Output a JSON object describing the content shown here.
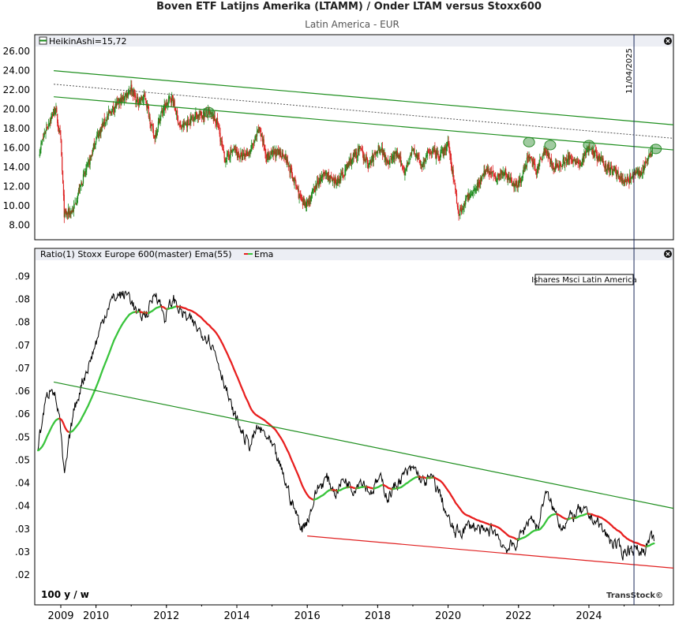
{
  "header": {
    "title": "Boven ETF Latijns Amerika (LTAMM) / Onder LTAM versus Stoxx600",
    "subtitle": "Latin America - EUR"
  },
  "colors": {
    "up": "#1a8a1a",
    "down": "#dd2222",
    "trend_green": "#1f8f1f",
    "trend_red": "#e02020",
    "ema_red": "#e82020",
    "ema_green": "#39c43c",
    "ratio": "#000000",
    "marker": "#2d8b2d",
    "vline": "#1b2a5a"
  },
  "x_ticks": [
    "2009",
    "2010",
    "2012",
    "2014",
    "2016",
    "2018",
    "2020",
    "2022",
    "2024"
  ],
  "vline_label": "11/04/2025",
  "watermark": "TransStock©",
  "period_label": "100 y / w",
  "chart_data": [
    {
      "type": "candlestick",
      "legend": "HeikinAshi=15,72",
      "ylim": [
        6.5,
        26.5
      ],
      "y_ticks": [
        "26.00",
        "24.00",
        "22.00",
        "20.00",
        "18.00",
        "16.00",
        "14.00",
        "12.00",
        "10.00",
        "8.00"
      ],
      "y_tick_values": [
        26,
        24,
        22,
        20,
        18,
        16,
        14,
        12,
        10,
        8
      ],
      "last_value": 15.72,
      "price_path": [
        [
          2008.4,
          15.8
        ],
        [
          2008.6,
          18.2
        ],
        [
          2008.85,
          20.1
        ],
        [
          2009.0,
          16.5
        ],
        [
          2009.1,
          9.0
        ],
        [
          2009.35,
          9.6
        ],
        [
          2009.6,
          12.5
        ],
        [
          2009.85,
          15.0
        ],
        [
          2010.0,
          17.0
        ],
        [
          2010.25,
          18.8
        ],
        [
          2010.5,
          20.2
        ],
        [
          2010.75,
          21.0
        ],
        [
          2011.0,
          22.3
        ],
        [
          2011.15,
          20.8
        ],
        [
          2011.4,
          21.2
        ],
        [
          2011.65,
          17.0
        ],
        [
          2011.85,
          19.6
        ],
        [
          2012.15,
          21.3
        ],
        [
          2012.4,
          18.0
        ],
        [
          2012.6,
          18.6
        ],
        [
          2012.8,
          19.4
        ],
        [
          2013.0,
          19.4
        ],
        [
          2013.2,
          19.6
        ],
        [
          2013.45,
          18.6
        ],
        [
          2013.65,
          14.8
        ],
        [
          2013.9,
          15.8
        ],
        [
          2014.15,
          15.0
        ],
        [
          2014.4,
          15.8
        ],
        [
          2014.65,
          18.0
        ],
        [
          2014.85,
          15.0
        ],
        [
          2015.1,
          15.5
        ],
        [
          2015.35,
          15.3
        ],
        [
          2015.65,
          12.4
        ],
        [
          2015.85,
          10.2
        ],
        [
          2016.05,
          10.5
        ],
        [
          2016.3,
          12.4
        ],
        [
          2016.55,
          13.4
        ],
        [
          2016.75,
          12.2
        ],
        [
          2017.0,
          13.2
        ],
        [
          2017.25,
          14.8
        ],
        [
          2017.5,
          15.8
        ],
        [
          2017.75,
          14.2
        ],
        [
          2018.05,
          16.2
        ],
        [
          2018.3,
          14.6
        ],
        [
          2018.55,
          15.4
        ],
        [
          2018.75,
          13.6
        ],
        [
          2019.0,
          15.8
        ],
        [
          2019.25,
          14.2
        ],
        [
          2019.5,
          15.8
        ],
        [
          2019.75,
          15.0
        ],
        [
          2020.0,
          16.4
        ],
        [
          2020.15,
          13.0
        ],
        [
          2020.3,
          9.2
        ],
        [
          2020.55,
          10.8
        ],
        [
          2020.8,
          12.0
        ],
        [
          2021.1,
          13.8
        ],
        [
          2021.35,
          13.0
        ],
        [
          2021.6,
          13.6
        ],
        [
          2021.85,
          12.2
        ],
        [
          2022.05,
          12.5
        ],
        [
          2022.3,
          15.4
        ],
        [
          2022.5,
          13.4
        ],
        [
          2022.75,
          16.0
        ],
        [
          2023.0,
          13.8
        ],
        [
          2023.25,
          14.6
        ],
        [
          2023.5,
          15.0
        ],
        [
          2023.75,
          14.2
        ],
        [
          2024.0,
          16.2
        ],
        [
          2024.25,
          15.0
        ],
        [
          2024.5,
          14.0
        ],
        [
          2024.75,
          13.6
        ],
        [
          2025.0,
          12.4
        ],
        [
          2025.25,
          13.0
        ],
        [
          2025.5,
          13.6
        ],
        [
          2025.8,
          15.7
        ]
      ],
      "trend_upper": [
        [
          2008.8,
          24.0
        ],
        [
          2026.4,
          18.4
        ]
      ],
      "trend_lower": [
        [
          2008.8,
          21.3
        ],
        [
          2026.4,
          15.8
        ]
      ],
      "trend_mid_dotted": [
        [
          2008.8,
          22.6
        ],
        [
          2026.4,
          17.0
        ]
      ],
      "markers": [
        [
          2013.2,
          19.7
        ],
        [
          2022.3,
          16.6
        ],
        [
          2022.9,
          16.3
        ],
        [
          2024.0,
          16.3
        ],
        [
          2025.9,
          15.9
        ]
      ],
      "vline_x": 2025.28
    },
    {
      "type": "line",
      "legend": "Ratio(1) Stoxx Europe 600(master)  Ema(55)",
      "legend_ema": "Ema",
      "series_label": "Ishares Msci Latin America",
      "ylim": [
        0.0185,
        0.0935
      ],
      "y_ticks": [
        ".09",
        ".08",
        ".08",
        ".07",
        ".07",
        ".06",
        ".06",
        ".05",
        ".05",
        ".04",
        ".04",
        ".03",
        ".03",
        ".02"
      ],
      "y_tick_values": [
        0.09,
        0.085,
        0.08,
        0.075,
        0.07,
        0.065,
        0.06,
        0.055,
        0.05,
        0.045,
        0.04,
        0.035,
        0.03,
        0.025
      ],
      "ratio_path": [
        [
          2008.35,
          0.053
        ],
        [
          2008.55,
          0.062
        ],
        [
          2008.75,
          0.067
        ],
        [
          2008.95,
          0.06
        ],
        [
          2009.1,
          0.046
        ],
        [
          2009.35,
          0.06
        ],
        [
          2009.6,
          0.067
        ],
        [
          2009.85,
          0.072
        ],
        [
          2010.1,
          0.078
        ],
        [
          2010.35,
          0.084
        ],
        [
          2010.65,
          0.086
        ],
        [
          2010.95,
          0.086
        ],
        [
          2011.2,
          0.081
        ],
        [
          2011.45,
          0.082
        ],
        [
          2011.7,
          0.087
        ],
        [
          2011.95,
          0.081
        ],
        [
          2012.2,
          0.085
        ],
        [
          2012.45,
          0.082
        ],
        [
          2012.7,
          0.08
        ],
        [
          2012.95,
          0.078
        ],
        [
          2013.2,
          0.077
        ],
        [
          2013.45,
          0.072
        ],
        [
          2013.65,
          0.067
        ],
        [
          2013.85,
          0.061
        ],
        [
          2014.1,
          0.057
        ],
        [
          2014.35,
          0.053
        ],
        [
          2014.6,
          0.057
        ],
        [
          2014.85,
          0.055
        ],
        [
          2015.1,
          0.051
        ],
        [
          2015.35,
          0.046
        ],
        [
          2015.6,
          0.04
        ],
        [
          2015.85,
          0.035
        ],
        [
          2016.05,
          0.038
        ],
        [
          2016.3,
          0.044
        ],
        [
          2016.55,
          0.046
        ],
        [
          2016.8,
          0.043
        ],
        [
          2017.05,
          0.046
        ],
        [
          2017.3,
          0.044
        ],
        [
          2017.55,
          0.046
        ],
        [
          2017.8,
          0.043
        ],
        [
          2018.05,
          0.046
        ],
        [
          2018.3,
          0.042
        ],
        [
          2018.55,
          0.045
        ],
        [
          2018.8,
          0.047
        ],
        [
          2019.05,
          0.048
        ],
        [
          2019.3,
          0.045
        ],
        [
          2019.55,
          0.046
        ],
        [
          2019.8,
          0.042
        ],
        [
          2020.0,
          0.037
        ],
        [
          2020.2,
          0.034
        ],
        [
          2020.45,
          0.035
        ],
        [
          2020.7,
          0.036
        ],
        [
          2021.0,
          0.034
        ],
        [
          2021.3,
          0.035
        ],
        [
          2021.6,
          0.031
        ],
        [
          2021.85,
          0.031
        ],
        [
          2022.1,
          0.034
        ],
        [
          2022.35,
          0.038
        ],
        [
          2022.55,
          0.035
        ],
        [
          2022.75,
          0.043
        ],
        [
          2022.95,
          0.04
        ],
        [
          2023.2,
          0.036
        ],
        [
          2023.45,
          0.037
        ],
        [
          2023.7,
          0.039
        ],
        [
          2023.95,
          0.038
        ],
        [
          2024.2,
          0.037
        ],
        [
          2024.45,
          0.034
        ],
        [
          2024.7,
          0.032
        ],
        [
          2024.95,
          0.03
        ],
        [
          2025.2,
          0.031
        ],
        [
          2025.45,
          0.03
        ],
        [
          2025.7,
          0.032
        ],
        [
          2025.85,
          0.033
        ]
      ],
      "trend_upper": [
        [
          2008.8,
          0.067
        ],
        [
          2026.4,
          0.0395
        ]
      ],
      "trend_lower": [
        [
          2016.0,
          0.0335
        ],
        [
          2026.4,
          0.0265
        ]
      ],
      "ema_span": 55,
      "vline_x": 2025.28
    }
  ]
}
